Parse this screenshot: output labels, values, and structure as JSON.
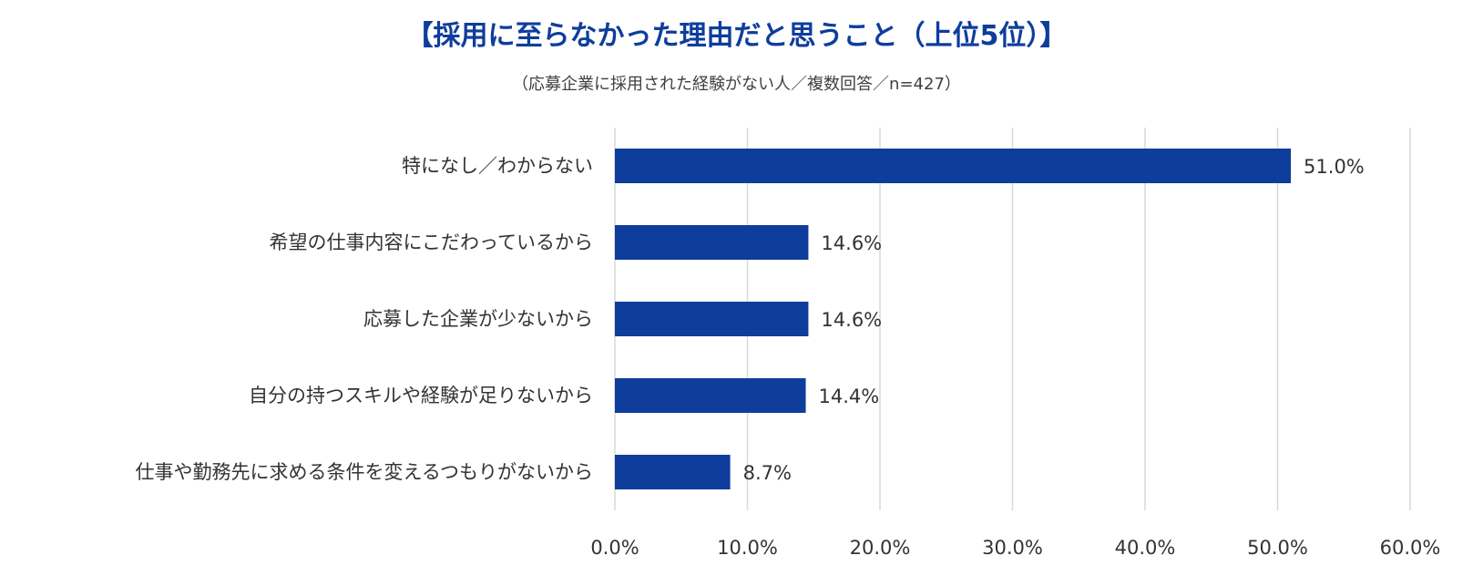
{
  "chart_data": {
    "type": "bar",
    "orientation": "horizontal",
    "title": "【採用に至らなかった理由だと思うこと（上位5位）】",
    "subtitle": "（応募企業に採用された経験がない人／複数回答／n=427）",
    "categories": [
      "特になし／わからない",
      "希望の仕事内容にこだわっているから",
      "応募した企業が少ないから",
      "自分の持つスキルや経験が足りないから",
      "仕事や勤務先に求める条件を変えるつもりがないから"
    ],
    "values": [
      51.0,
      14.6,
      14.6,
      14.4,
      8.7
    ],
    "value_labels": [
      "51.0%",
      "14.6%",
      "14.6%",
      "14.4%",
      "8.7%"
    ],
    "x_ticks": [
      0,
      10,
      20,
      30,
      40,
      50,
      60
    ],
    "x_tick_labels": [
      "0.0%",
      "10.0%",
      "20.0%",
      "30.0%",
      "40.0%",
      "50.0%",
      "60.0%"
    ],
    "xlim": [
      0,
      60
    ],
    "grid": true,
    "legend": false,
    "bar_color": "#0e3d9c",
    "grid_color": "#d9d9d9"
  }
}
